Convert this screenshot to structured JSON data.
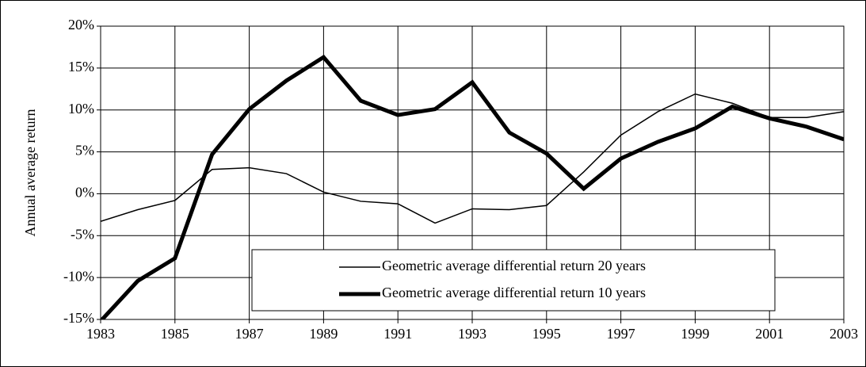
{
  "chart_data": {
    "type": "line",
    "y_label": "Annual average return",
    "x": [
      1983,
      1984,
      1985,
      1986,
      1987,
      1988,
      1989,
      1990,
      1991,
      1992,
      1993,
      1994,
      1995,
      1996,
      1997,
      1998,
      1999,
      2000,
      2001,
      2002,
      2003
    ],
    "xlim": [
      1983,
      2003
    ],
    "xticks": [
      1983,
      1985,
      1987,
      1989,
      1991,
      1993,
      1995,
      1997,
      1999,
      2001,
      2003
    ],
    "ylim": [
      -15,
      20
    ],
    "yticks": [
      {
        "value": -15,
        "label": "-15%"
      },
      {
        "value": -10,
        "label": "-10%"
      },
      {
        "value": -5,
        "label": "-5%"
      },
      {
        "value": 0,
        "label": "0%"
      },
      {
        "value": 5,
        "label": "5%"
      },
      {
        "value": 10,
        "label": "10%"
      },
      {
        "value": 15,
        "label": "15%"
      },
      {
        "value": 20,
        "label": "20%"
      }
    ],
    "grid": true,
    "legend": "lower right",
    "series": [
      {
        "name": "Geometric average differential return 20 years",
        "color": "#000000",
        "width": 1.5,
        "values": [
          -3.3,
          -1.9,
          -0.8,
          2.9,
          3.1,
          2.4,
          0.2,
          -0.9,
          -1.2,
          -3.5,
          -1.8,
          -1.9,
          -1.4,
          2.6,
          7.0,
          9.8,
          11.9,
          10.8,
          9.1,
          9.1,
          9.8
        ]
      },
      {
        "name": "Geometric average differential return 10 years",
        "color": "#000000",
        "width": 5,
        "values": [
          -15.2,
          -10.4,
          -7.7,
          4.7,
          10.1,
          13.5,
          16.3,
          11.1,
          9.4,
          10.1,
          13.3,
          7.3,
          4.8,
          0.6,
          4.2,
          6.2,
          7.8,
          10.4,
          9.0,
          8.0,
          6.5
        ]
      }
    ]
  }
}
